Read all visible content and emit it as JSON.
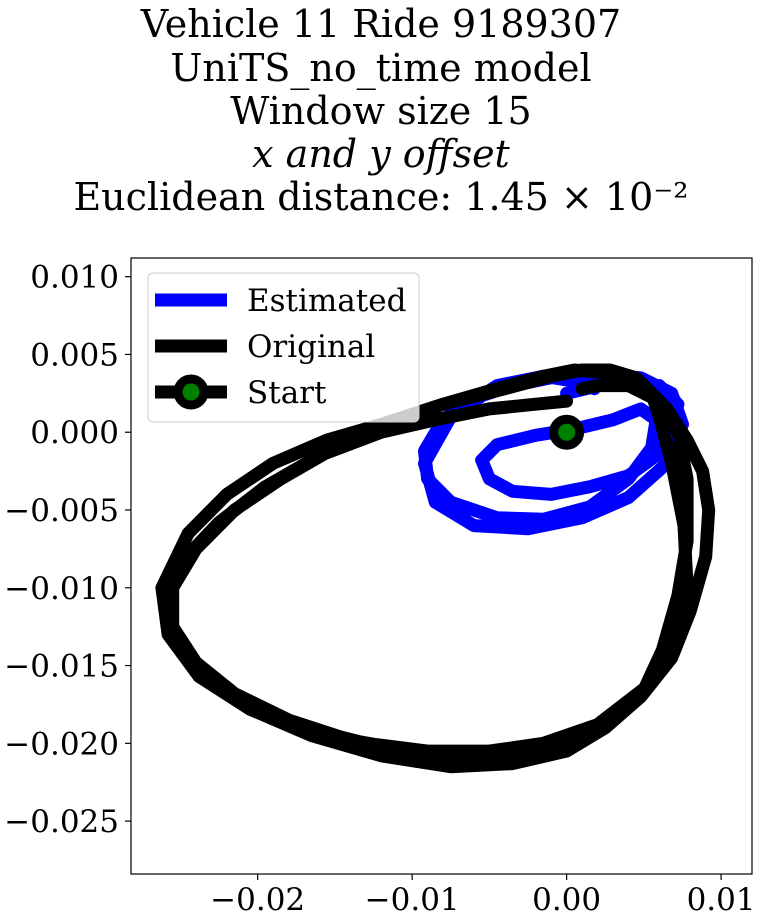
{
  "chart_data": {
    "type": "line",
    "title_lines": [
      "Vehicle 11 Ride 9189307",
      "UniTS_no_time model",
      "Window size 15",
      "x and y offset",
      "Euclidean distance: 1.45 × 10⁻²"
    ],
    "xlim": [
      -0.0282,
      0.012
    ],
    "ylim": [
      -0.0284,
      0.0112
    ],
    "x_ticks": [
      -0.02,
      -0.01,
      0.0,
      0.01
    ],
    "x_tick_labels": [
      "−0.02",
      "−0.01",
      "0.00",
      "0.01"
    ],
    "y_ticks": [
      0.01,
      0.005,
      0.0,
      -0.005,
      -0.01,
      -0.015,
      -0.02,
      -0.025
    ],
    "y_tick_labels": [
      "0.010",
      "0.005",
      "0.000",
      "−0.005",
      "−0.010",
      "−0.015",
      "−0.020",
      "−0.025"
    ],
    "grid": false,
    "legend_position": "top-left",
    "series": [
      {
        "name": "Estimated",
        "color": "#0000ff",
        "x": [
          0.0,
          0.003,
          0.006,
          0.0072,
          0.0068,
          0.0058,
          0.004,
          0.0015,
          -0.001,
          -0.0035,
          -0.005,
          -0.0055,
          -0.0045,
          -0.002,
          0.0005,
          0.003,
          0.0048,
          0.0058,
          0.0055,
          0.004,
          0.0015,
          -0.0015,
          -0.0045,
          -0.0075,
          -0.009,
          -0.0092,
          -0.008,
          -0.006,
          -0.0035,
          -0.001,
          0.002,
          0.0048,
          0.0068,
          0.0075,
          0.0065,
          0.004,
          0.001,
          -0.0025,
          -0.006,
          -0.0085,
          -0.0092,
          -0.0075,
          -0.0045,
          -0.0015,
          0.001,
          0.0018
        ],
        "y": [
          0.0025,
          0.0032,
          0.003,
          0.0018,
          0.0,
          -0.0015,
          -0.0028,
          -0.0035,
          -0.004,
          -0.0038,
          -0.003,
          -0.0018,
          -0.0008,
          -0.0002,
          0.0002,
          0.0008,
          0.0015,
          0.0008,
          -0.001,
          -0.003,
          -0.0048,
          -0.0056,
          -0.0055,
          -0.0045,
          -0.003,
          -0.0012,
          0.0008,
          0.0022,
          0.003,
          0.0035,
          0.0037,
          0.0035,
          0.0025,
          0.0005,
          -0.002,
          -0.0042,
          -0.0055,
          -0.0062,
          -0.006,
          -0.0045,
          -0.002,
          0.001,
          0.003,
          0.0036,
          0.0032,
          0.0028
        ]
      },
      {
        "name": "Original",
        "color": "#000000",
        "x": [
          0.0,
          -0.002,
          -0.005,
          -0.0085,
          -0.012,
          -0.016,
          -0.0195,
          -0.0225,
          -0.0248,
          -0.0258,
          -0.0255,
          -0.0235,
          -0.0205,
          -0.017,
          -0.013,
          -0.009,
          -0.005,
          -0.0015,
          0.002,
          0.005,
          0.007,
          0.0078,
          0.0076,
          0.0068,
          0.006,
          0.0055,
          0.0045,
          0.0028,
          0.001,
          -0.001,
          -0.004,
          -0.008,
          -0.012,
          -0.0155,
          -0.019,
          -0.022,
          -0.0245,
          -0.0262,
          -0.0258,
          -0.0238,
          -0.0205,
          -0.0165,
          -0.012,
          -0.0075,
          -0.0035,
          0.0,
          0.0025,
          0.0048,
          0.0068,
          0.008,
          0.009,
          0.0092,
          0.0088,
          0.0078,
          0.0065,
          0.005,
          0.0028,
          0.0005,
          -0.0015,
          -0.0045,
          -0.008,
          -0.0115,
          -0.015,
          -0.0185,
          -0.0215,
          -0.024,
          -0.0255,
          -0.0255,
          -0.024,
          -0.0215,
          -0.018,
          -0.014,
          -0.01,
          -0.007,
          -0.004,
          -0.0005,
          0.0025,
          0.0048,
          0.0062,
          0.0072,
          0.0078,
          0.0078,
          0.0072,
          0.006,
          0.004,
          0.002,
          0.001
        ],
        "y": [
          0.002,
          0.0018,
          0.0015,
          0.0008,
          0.0,
          -0.0015,
          -0.0035,
          -0.0058,
          -0.0082,
          -0.0105,
          -0.013,
          -0.0155,
          -0.0175,
          -0.019,
          -0.02,
          -0.0205,
          -0.0205,
          -0.02,
          -0.0188,
          -0.0165,
          -0.0135,
          -0.01,
          -0.006,
          -0.002,
          0.001,
          0.0025,
          0.0035,
          0.004,
          0.004,
          0.0036,
          0.0028,
          0.0018,
          0.0005,
          -0.0005,
          -0.002,
          -0.004,
          -0.0065,
          -0.01,
          -0.013,
          -0.0157,
          -0.0178,
          -0.0195,
          -0.0208,
          -0.0215,
          -0.0213,
          -0.0205,
          -0.019,
          -0.017,
          -0.0145,
          -0.0115,
          -0.008,
          -0.005,
          -0.0025,
          -0.0005,
          0.0015,
          0.003,
          0.0038,
          0.004,
          0.0036,
          0.0028,
          0.0018,
          0.0005,
          -0.001,
          -0.003,
          -0.005,
          -0.0075,
          -0.01,
          -0.0125,
          -0.0148,
          -0.0168,
          -0.0185,
          -0.0198,
          -0.0205,
          -0.0208,
          -0.0207,
          -0.0202,
          -0.019,
          -0.017,
          -0.014,
          -0.0105,
          -0.007,
          -0.003,
          0.0,
          0.002,
          0.003,
          0.003,
          0.0028
        ]
      }
    ],
    "start_point": {
      "name": "Start",
      "x": 0.0,
      "y": 0.0,
      "marker_color": "#000000",
      "fill_color": "#008000"
    },
    "legend": [
      {
        "label": "Estimated",
        "color": "#0000ff",
        "marker": false
      },
      {
        "label": "Original",
        "color": "#000000",
        "marker": false
      },
      {
        "label": "Start",
        "color": "#000000",
        "marker": true,
        "fill": "#008000"
      }
    ]
  }
}
